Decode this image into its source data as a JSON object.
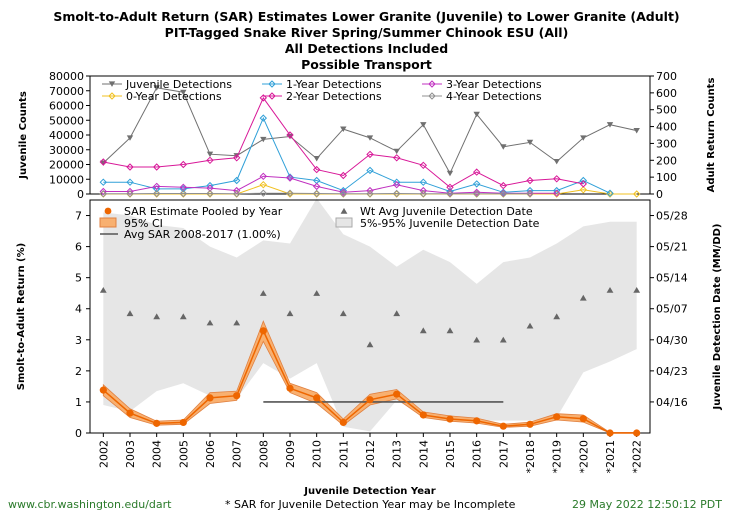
{
  "titles": {
    "line1": "Smolt-to-Adult Return (SAR) Estimates Lower Granite (Juvenile) to Lower Granite (Adult)",
    "line2": "PIT-Tagged Snake River Spring/Summer Chinook ESU (All)",
    "line3": "All Detections Included",
    "line4": "Possible Transport"
  },
  "footer": {
    "left": "www.cbr.washington.edu/dart",
    "center": "* SAR for Juvenile Detection Year may be Incomplete",
    "right": "29 May 2022 12:50:12 PDT"
  },
  "colors": {
    "juvenile": "#707070",
    "age0": "#f0c020",
    "age1": "#30a0d8",
    "age2": "#d81898",
    "age3": "#c030c0",
    "age4": "#909090",
    "sar": "#ee6600",
    "ci_fill": "#f8b070",
    "band": "#e6e6e6",
    "footer_link": "#2a7a2a"
  },
  "chart_data": [
    {
      "type": "line",
      "title": "Juvenile and adult return counts",
      "categories": [
        "2002",
        "2003",
        "2004",
        "2005",
        "2006",
        "2007",
        "2008",
        "2009",
        "2010",
        "2011",
        "2012",
        "2013",
        "2014",
        "2015",
        "2016",
        "2017",
        "*2018",
        "*2019",
        "*2020",
        "*2021",
        "*2022"
      ],
      "ylabel": "Juvenile Counts",
      "ylim": [
        0,
        80000
      ],
      "yticks": [
        "0",
        "10000",
        "20000",
        "30000",
        "40000",
        "50000",
        "60000",
        "70000",
        "80000"
      ],
      "y2label": "Adult Return Counts",
      "y2lim": [
        0,
        700
      ],
      "y2ticks": [
        "0",
        "100",
        "200",
        "300",
        "400",
        "500",
        "600",
        "700"
      ],
      "legend": [
        {
          "key": "juvenile",
          "label": "Juvenile Detections"
        },
        {
          "key": "age0",
          "label": "0-Year Detections"
        },
        {
          "key": "age1",
          "label": "1-Year Detections"
        },
        {
          "key": "age2",
          "label": "2-Year Detections"
        },
        {
          "key": "age3",
          "label": "3-Year Detections"
        },
        {
          "key": "age4",
          "label": "4-Year Detections"
        }
      ],
      "series": [
        {
          "key": "juvenile",
          "axis": "left",
          "values": [
            21000,
            38000,
            72000,
            69000,
            27000,
            26000,
            37000,
            39000,
            24000,
            44000,
            38000,
            29000,
            47000,
            14000,
            54000,
            32000,
            35000,
            22000,
            38000,
            47000,
            43000
          ]
        },
        {
          "key": "age0",
          "axis": "right",
          "values": [
            0,
            0,
            0,
            0,
            0,
            0,
            55,
            0,
            0,
            0,
            0,
            0,
            0,
            0,
            0,
            0,
            0,
            0,
            25,
            0,
            0
          ]
        },
        {
          "key": "age1",
          "axis": "right",
          "values": [
            70,
            70,
            30,
            30,
            50,
            80,
            450,
            100,
            80,
            20,
            140,
            70,
            70,
            15,
            60,
            10,
            20,
            20,
            80,
            5,
            null
          ]
        },
        {
          "key": "age2",
          "axis": "right",
          "values": [
            190,
            160,
            160,
            175,
            200,
            215,
            570,
            350,
            145,
            110,
            235,
            215,
            170,
            40,
            130,
            50,
            80,
            90,
            60,
            null,
            null
          ]
        },
        {
          "key": "age3",
          "axis": "right",
          "values": [
            15,
            15,
            45,
            40,
            35,
            20,
            105,
            95,
            45,
            10,
            20,
            55,
            20,
            5,
            10,
            5,
            5,
            5,
            null,
            null,
            null
          ]
        },
        {
          "key": "age4",
          "axis": "right",
          "values": [
            2,
            2,
            3,
            3,
            3,
            2,
            5,
            5,
            3,
            1,
            2,
            3,
            2,
            1,
            1,
            1,
            1,
            null,
            null,
            null,
            null
          ]
        }
      ]
    },
    {
      "type": "line",
      "title": "Smolt-to-Adult Return and juvenile detection date",
      "categories": [
        "2002",
        "2003",
        "2004",
        "2005",
        "2006",
        "2007",
        "2008",
        "2009",
        "2010",
        "2011",
        "2012",
        "2013",
        "2014",
        "2015",
        "2016",
        "2017",
        "*2018",
        "*2019",
        "*2020",
        "*2021",
        "*2022"
      ],
      "xlabel": "Juvenile Detection Year",
      "ylabel": "Smolt-to-Adult Return (%)",
      "ylim": [
        0,
        7.5
      ],
      "yticks": [
        "0",
        "1",
        "2",
        "3",
        "4",
        "5",
        "6",
        "7"
      ],
      "y2label": "Juvenile Detection Date (MM/DD)",
      "y2ticks": [
        "04/16",
        "04/23",
        "04/30",
        "05/07",
        "05/14",
        "05/21",
        "05/28"
      ],
      "legend": {
        "sar": "SAR Estimate Pooled by Year",
        "ci": "95% CI",
        "avg": "Avg SAR 2008-2017 (1.00%)",
        "wt": "Wt Avg Juvenile Detection Date",
        "band": "5%-95% Juvenile Detection Date"
      },
      "sar": [
        1.38,
        0.64,
        0.31,
        0.34,
        1.13,
        1.2,
        3.29,
        1.44,
        1.13,
        0.34,
        1.07,
        1.25,
        0.58,
        0.45,
        0.39,
        0.22,
        0.28,
        0.52,
        0.46,
        0.0,
        0.0
      ],
      "ci_low": [
        1.2,
        0.5,
        0.25,
        0.28,
        0.95,
        1.05,
        2.95,
        1.3,
        0.95,
        0.25,
        0.9,
        1.1,
        0.5,
        0.38,
        0.32,
        0.18,
        0.22,
        0.42,
        0.35,
        0.0,
        0.0
      ],
      "ci_high": [
        1.55,
        0.78,
        0.38,
        0.42,
        1.3,
        1.35,
        3.6,
        1.6,
        1.3,
        0.45,
        1.25,
        1.4,
        0.68,
        0.55,
        0.48,
        0.28,
        0.35,
        0.62,
        0.58,
        0.02,
        0.02
      ],
      "avg_sar": {
        "value": 1.0,
        "start": "2008",
        "end": "2017"
      },
      "wt_avg_date_y": [
        4.6,
        3.85,
        3.75,
        3.75,
        3.55,
        3.55,
        4.5,
        3.85,
        4.5,
        3.85,
        2.85,
        3.85,
        3.3,
        3.3,
        3.0,
        3.0,
        3.45,
        3.75,
        4.35,
        4.6,
        4.6
      ],
      "band_low_y": [
        0.9,
        0.7,
        1.35,
        1.6,
        1.2,
        1.1,
        2.25,
        1.75,
        2.25,
        0.2,
        0.05,
        1.05,
        0.55,
        0.55,
        0.4,
        0.4,
        0.4,
        0.5,
        1.95,
        2.3,
        2.7
      ],
      "band_high_y": [
        7.1,
        7.0,
        6.7,
        6.6,
        6.0,
        5.65,
        6.2,
        6.1,
        7.55,
        6.4,
        6.0,
        5.35,
        5.9,
        5.5,
        4.8,
        5.5,
        5.65,
        6.1,
        6.65,
        6.8,
        6.8
      ]
    }
  ]
}
